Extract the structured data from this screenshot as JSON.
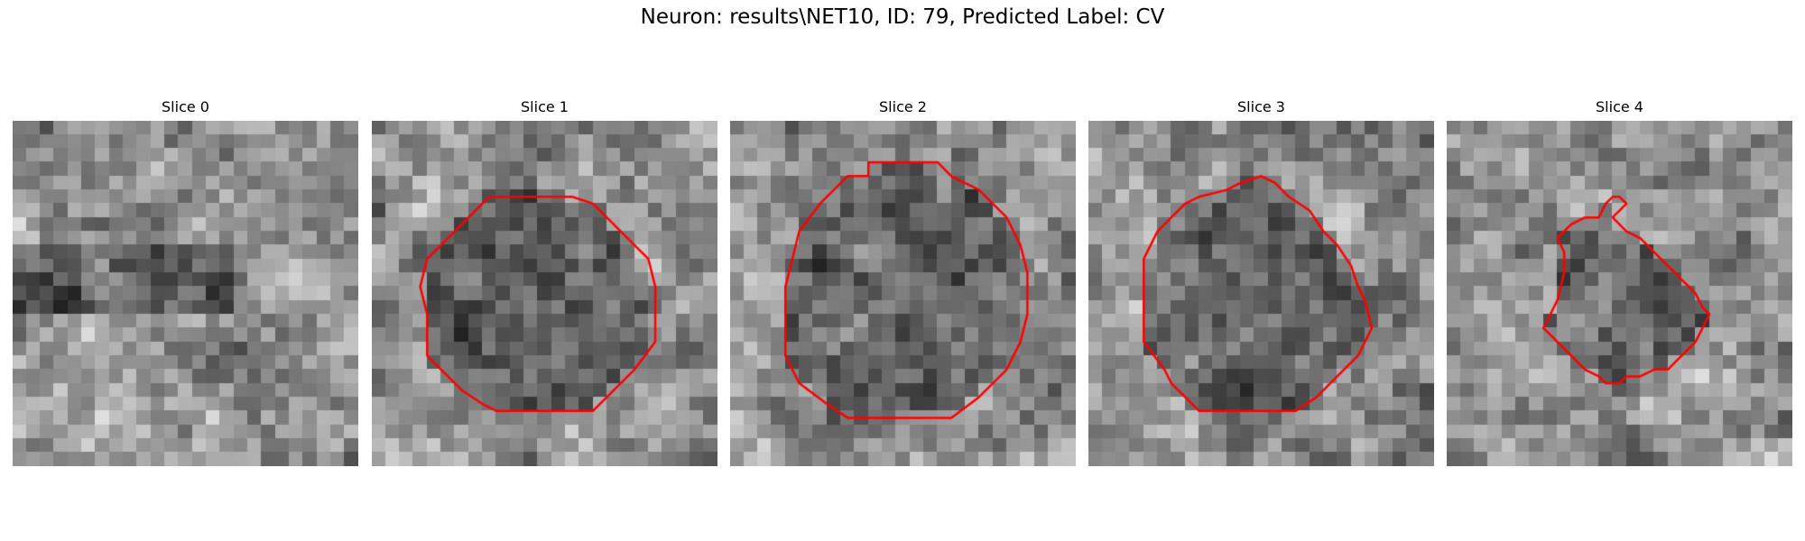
{
  "figure": {
    "title": "Neuron: results\\NET10, ID: 79, Predicted Label: CV"
  },
  "colors": {
    "contour": "#ff0000",
    "background": "#ffffff"
  },
  "grid": {
    "cells": 25
  },
  "panels": [
    {
      "title": "Slice 0",
      "seed": 11,
      "dark_band": true,
      "contour": []
    },
    {
      "title": "Slice 1",
      "seed": 23,
      "dark_band": false,
      "contour": [
        [
          8.5,
          5.5
        ],
        [
          14.5,
          5.5
        ],
        [
          16,
          6
        ],
        [
          18,
          8
        ],
        [
          20,
          10
        ],
        [
          20.5,
          12
        ],
        [
          20.5,
          16
        ],
        [
          19,
          18
        ],
        [
          17,
          20
        ],
        [
          16,
          21
        ],
        [
          9,
          21
        ],
        [
          8,
          20.5
        ],
        [
          6.5,
          19.5
        ],
        [
          5,
          18
        ],
        [
          4,
          17
        ],
        [
          4,
          14
        ],
        [
          3.5,
          12
        ],
        [
          4,
          10
        ],
        [
          5,
          9
        ],
        [
          7,
          7
        ],
        [
          8,
          6
        ]
      ]
    },
    {
      "title": "Slice 2",
      "seed": 37,
      "dark_band": false,
      "contour": [
        [
          10,
          3
        ],
        [
          15,
          3
        ],
        [
          16,
          4
        ],
        [
          18,
          5
        ],
        [
          20,
          7
        ],
        [
          21,
          9
        ],
        [
          21.5,
          11
        ],
        [
          21.5,
          14
        ],
        [
          21,
          16
        ],
        [
          20,
          18
        ],
        [
          18,
          20
        ],
        [
          16,
          21.5
        ],
        [
          8.5,
          21.5
        ],
        [
          7,
          20.5
        ],
        [
          5,
          19
        ],
        [
          4,
          17
        ],
        [
          4,
          15
        ],
        [
          4,
          12
        ],
        [
          4.5,
          10
        ],
        [
          5,
          8
        ],
        [
          6.5,
          6
        ],
        [
          8.5,
          4
        ],
        [
          10,
          4
        ]
      ]
    },
    {
      "title": "Slice 3",
      "seed": 53,
      "dark_band": false,
      "contour": [
        [
          12.5,
          4
        ],
        [
          13.5,
          4.5
        ],
        [
          14.5,
          5.5
        ],
        [
          16,
          6.5
        ],
        [
          17,
          8
        ],
        [
          18,
          9
        ],
        [
          19,
          10.5
        ],
        [
          19.5,
          12
        ],
        [
          20,
          13
        ],
        [
          20.5,
          15
        ],
        [
          19.5,
          17
        ],
        [
          18,
          18.5
        ],
        [
          16.5,
          20
        ],
        [
          15,
          21
        ],
        [
          8,
          21
        ],
        [
          7,
          20
        ],
        [
          6,
          19
        ],
        [
          5.5,
          18
        ],
        [
          4,
          16
        ],
        [
          4,
          14
        ],
        [
          4,
          12
        ],
        [
          4,
          10
        ],
        [
          4.5,
          9
        ],
        [
          5,
          8
        ],
        [
          6,
          7
        ],
        [
          7,
          6
        ],
        [
          8,
          5.5
        ],
        [
          10,
          5
        ],
        [
          11,
          4.5
        ]
      ]
    },
    {
      "title": "Slice 4",
      "seed": 71,
      "dark_band": false,
      "contour": [
        [
          12.5,
          5.5
        ],
        [
          13,
          6
        ],
        [
          12,
          7
        ],
        [
          13,
          8
        ],
        [
          14,
          8.5
        ],
        [
          15,
          9.5
        ],
        [
          16,
          10.5
        ],
        [
          17,
          11.5
        ],
        [
          18,
          12.5
        ],
        [
          18.5,
          13.5
        ],
        [
          19,
          14
        ],
        [
          18.5,
          15
        ],
        [
          18,
          16
        ],
        [
          17,
          17
        ],
        [
          16,
          18
        ],
        [
          15,
          18
        ],
        [
          14,
          18.5
        ],
        [
          13,
          18.5
        ],
        [
          12.5,
          19
        ],
        [
          11.5,
          19
        ],
        [
          11,
          18.5
        ],
        [
          10,
          18
        ],
        [
          9,
          17
        ],
        [
          8,
          16
        ],
        [
          7.5,
          15.5
        ],
        [
          7,
          15
        ],
        [
          7.5,
          14
        ],
        [
          8,
          13
        ],
        [
          8.5,
          11
        ],
        [
          8.5,
          10
        ],
        [
          8.5,
          9.5
        ],
        [
          8,
          8.5
        ],
        [
          9,
          7.5
        ],
        [
          10,
          7
        ],
        [
          11,
          7
        ],
        [
          11.5,
          6
        ],
        [
          12,
          5.5
        ]
      ]
    }
  ]
}
